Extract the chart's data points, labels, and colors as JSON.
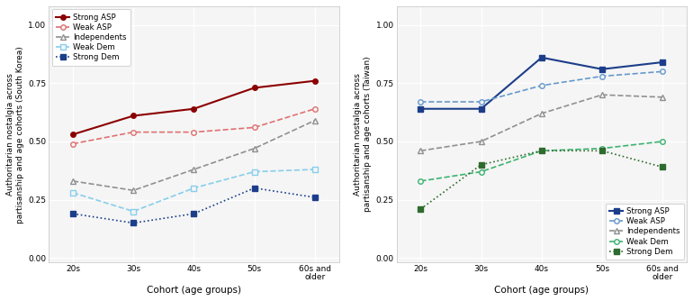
{
  "x_labels": [
    "20s",
    "30s",
    "40s",
    "50s",
    "60s and\nolder"
  ],
  "x_ticks": [
    0,
    1,
    2,
    3,
    4
  ],
  "korea": {
    "Strong_ASP": [
      0.53,
      0.61,
      0.64,
      0.73,
      0.76
    ],
    "Weak_ASP": [
      0.49,
      0.54,
      0.54,
      0.56,
      0.64
    ],
    "Independents": [
      0.33,
      0.29,
      0.38,
      0.47,
      0.59
    ],
    "Weak_Dem": [
      0.28,
      0.2,
      0.3,
      0.37,
      0.38
    ],
    "Strong_Dem": [
      0.19,
      0.15,
      0.19,
      0.3,
      0.26
    ]
  },
  "taiwan": {
    "Strong_ASP": [
      0.64,
      0.64,
      0.86,
      0.81,
      0.84
    ],
    "Weak_ASP": [
      0.67,
      0.67,
      0.74,
      0.78,
      0.8
    ],
    "Independents": [
      0.46,
      0.5,
      0.62,
      0.7,
      0.69
    ],
    "Weak_Dem": [
      0.33,
      0.37,
      0.46,
      0.47,
      0.5
    ],
    "Strong_Dem": [
      0.21,
      0.4,
      0.46,
      0.46,
      0.39
    ]
  },
  "korea_styles": {
    "Strong_ASP": {
      "color": "#8B0000",
      "linestyle": "-",
      "marker": "o",
      "markerfacecolor": "#8B0000",
      "markersize": 4,
      "linewidth": 1.5
    },
    "Weak_ASP": {
      "color": "#E07070",
      "linestyle": "--",
      "marker": "o",
      "markerfacecolor": "#f5f5f5",
      "markersize": 4,
      "linewidth": 1.2
    },
    "Independents": {
      "color": "#909090",
      "linestyle": "--",
      "marker": "^",
      "markerfacecolor": "#f5f5f5",
      "markersize": 4,
      "linewidth": 1.2
    },
    "Weak_Dem": {
      "color": "#87CEEB",
      "linestyle": "--",
      "marker": "s",
      "markerfacecolor": "#f5f5f5",
      "markersize": 4,
      "linewidth": 1.2
    },
    "Strong_Dem": {
      "color": "#1C3E8A",
      "linestyle": ":",
      "marker": "s",
      "markerfacecolor": "#1C3E8A",
      "markersize": 4,
      "linewidth": 1.2
    }
  },
  "taiwan_styles": {
    "Strong_ASP": {
      "color": "#1C3E8A",
      "linestyle": "-",
      "marker": "s",
      "markerfacecolor": "#1C3E8A",
      "markersize": 4,
      "linewidth": 1.5
    },
    "Weak_ASP": {
      "color": "#6699CC",
      "linestyle": "--",
      "marker": "o",
      "markerfacecolor": "#f5f5f5",
      "markersize": 4,
      "linewidth": 1.2
    },
    "Independents": {
      "color": "#909090",
      "linestyle": "--",
      "marker": "^",
      "markerfacecolor": "#f5f5f5",
      "markersize": 4,
      "linewidth": 1.2
    },
    "Weak_Dem": {
      "color": "#3CB371",
      "linestyle": "--",
      "marker": "o",
      "markerfacecolor": "#f5f5f5",
      "markersize": 4,
      "linewidth": 1.2
    },
    "Strong_Dem": {
      "color": "#2E6B2E",
      "linestyle": ":",
      "marker": "s",
      "markerfacecolor": "#2E6B2E",
      "markersize": 4,
      "linewidth": 1.2
    }
  },
  "series_keys": [
    "Strong_ASP",
    "Weak_ASP",
    "Independents",
    "Weak_Dem",
    "Strong_Dem"
  ],
  "legend_labels": [
    "Strong ASP",
    "Weak ASP",
    "Independents",
    "Weak Dem",
    "Strong Dem"
  ],
  "ylim": [
    -0.02,
    1.08
  ],
  "yticks": [
    0.0,
    0.25,
    0.5,
    0.75,
    1.0
  ],
  "ytick_labels": [
    "0.00",
    "0.25",
    "0.50",
    "0.75",
    "1.00"
  ],
  "xlabel": "Cohort (age groups)",
  "korea_ylabel": "Authoritarian nostalgia across\npartisanship and age cohorts (South Korea)",
  "taiwan_ylabel": "Authoritarian nostalgia across\npartisanship and age cohorts (Taiwan)",
  "plot_bg": "#f5f5f5",
  "fig_bg": "#ffffff",
  "grid_color": "#ffffff"
}
